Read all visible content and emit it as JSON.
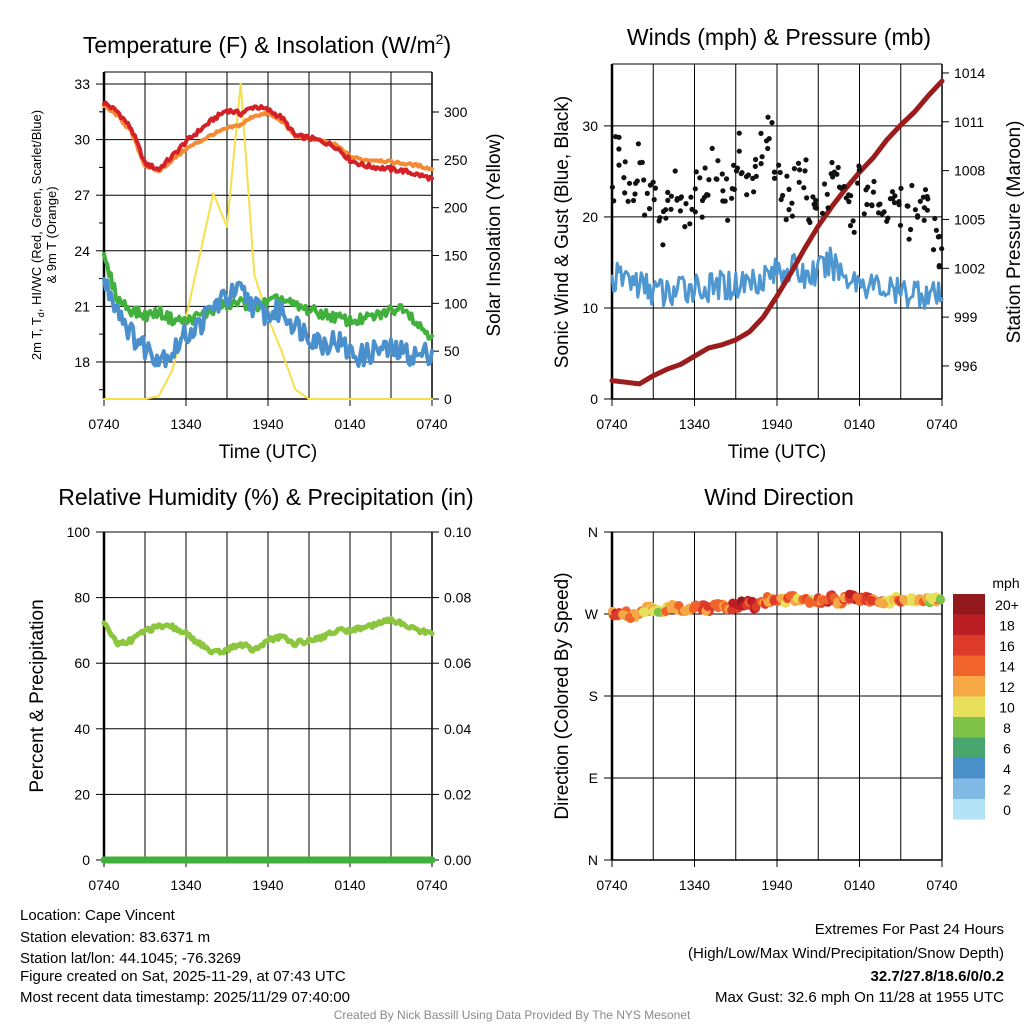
{
  "colors": {
    "temp_2m": "#d42027",
    "temp_9m": "#f58a34",
    "dewpoint": "#42b03d",
    "windchill": "#4a90cc",
    "solar": "#f8e04a",
    "sonic_wind": "#4f97d1",
    "gust": "#111111",
    "pressure": "#9b1c1c",
    "rh": "#8cc63f",
    "precip": "#42b03d",
    "extremes": "#d42027"
  },
  "chart_data": [
    {
      "type": "line",
      "title": "Temperature (F) & Insolation (W/m",
      "title_sup": "2",
      "title_close": ")",
      "xlabel": "Time (UTC)",
      "ylabel_line1_a": "2m T, T",
      "ylabel_line1_sub": "d",
      "ylabel_line1_b": ", HI/WC (Red, Green, Scarlet/Blue)",
      "ylabel_line2": "& 9m T (Orange)",
      "y2label": "Solar Insolation (Yellow)",
      "x_hours": [
        0,
        1,
        2,
        3,
        4,
        5,
        6,
        7,
        8,
        9,
        10,
        11,
        12,
        13,
        14,
        15,
        16,
        17,
        18,
        19,
        20,
        21,
        22,
        23,
        24
      ],
      "xticks": [
        "0740",
        "1340",
        "1940",
        "0140",
        "0740"
      ],
      "ylim": [
        16,
        33.65
      ],
      "yticks": [
        18,
        21,
        24,
        27,
        30,
        33
      ],
      "y2lim": [
        0,
        341.8
      ],
      "y2ticks": [
        0,
        50,
        100,
        150,
        200,
        250,
        300
      ],
      "series": [
        {
          "name": "2m T",
          "axis": "left",
          "color_key": "temp_2m",
          "values": [
            32,
            31.5,
            30.6,
            28.7,
            28.4,
            29.1,
            29.9,
            30.5,
            31.1,
            31.6,
            31.4,
            31.8,
            31.6,
            31.2,
            30.2,
            30.1,
            29.9,
            29.6,
            28.9,
            28.6,
            28.5,
            28.4,
            28.3,
            28.1,
            27.9
          ]
        },
        {
          "name": "9m T",
          "axis": "left",
          "color_key": "temp_9m",
          "values": [
            31.8,
            31.3,
            30.4,
            28.6,
            28.3,
            28.9,
            29.5,
            29.9,
            30.3,
            30.6,
            30.8,
            31.3,
            31.4,
            31.0,
            30.2,
            30.1,
            29.9,
            29.7,
            29.1,
            28.9,
            28.9,
            28.8,
            28.7,
            28.6,
            28.4
          ]
        },
        {
          "name": "Dewpoint",
          "axis": "left",
          "color_key": "dewpoint",
          "values": [
            23.6,
            21.4,
            20.8,
            20.5,
            20.7,
            20.3,
            20.2,
            20.5,
            20.8,
            21.1,
            21.2,
            21.0,
            21.2,
            21.4,
            21.0,
            20.8,
            20.6,
            20.4,
            20.2,
            20.3,
            20.5,
            20.8,
            21.0,
            20.0,
            19.4
          ]
        },
        {
          "name": "Wind Chill",
          "axis": "left",
          "color_key": "windchill",
          "values": [
            22.3,
            21.0,
            19.5,
            18.8,
            18.3,
            18.5,
            19.5,
            20.0,
            21.0,
            21.5,
            21.8,
            21.0,
            20.5,
            20.8,
            20.0,
            19.5,
            19.0,
            19.2,
            18.5,
            18.3,
            18.7,
            18.6,
            18.5,
            18.3,
            18.6
          ]
        },
        {
          "name": "Solar Insolation",
          "axis": "right",
          "color_key": "solar",
          "values": [
            0,
            0,
            0,
            0,
            3,
            30,
            85,
            150,
            215,
            180,
            330,
            130,
            85,
            50,
            10,
            0,
            0,
            0,
            0,
            0,
            0,
            0,
            0,
            0,
            0
          ]
        }
      ]
    },
    {
      "type": "line+scatter",
      "title": "Winds (mph) & Pressure (mb)",
      "xlabel": "Time (UTC)",
      "ylabel": "Sonic Wind & Gust (Blue, Black)",
      "y2label": "Station Pressure (Maroon)",
      "x_hours": [
        0,
        1,
        2,
        3,
        4,
        5,
        6,
        7,
        8,
        9,
        10,
        11,
        12,
        13,
        14,
        15,
        16,
        17,
        18,
        19,
        20,
        21,
        22,
        23,
        24
      ],
      "xticks": [
        "0740",
        "1340",
        "1940",
        "0140",
        "0740"
      ],
      "ylim": [
        0,
        36.8
      ],
      "yticks": [
        0,
        10,
        20,
        30
      ],
      "y2lim": [
        993.97,
        1014.55
      ],
      "y2ticks": [
        996,
        999,
        1002,
        1005,
        1008,
        1011,
        1014
      ],
      "series": [
        {
          "name": "Sonic Wind",
          "axis": "left",
          "color_key": "sonic_wind",
          "values": [
            13,
            13.5,
            12.5,
            12,
            11.5,
            12,
            12.5,
            12,
            12.5,
            12.5,
            13,
            13.5,
            14,
            14.5,
            13.5,
            14,
            15,
            13.5,
            13,
            12.5,
            12,
            11.5,
            12,
            11.5,
            11
          ]
        },
        {
          "name": "Station Pressure",
          "axis": "right",
          "color_key": "pressure",
          "values": [
            995.1,
            995.0,
            994.9,
            995.4,
            995.8,
            996.1,
            996.6,
            997.1,
            997.3,
            997.6,
            998.1,
            999.0,
            1000.3,
            1001.7,
            1003.2,
            1004.6,
            1005.8,
            1006.9,
            1007.9,
            1008.8,
            1009.9,
            1010.8,
            1011.6,
            1012.6,
            1013.5
          ]
        }
      ],
      "gust_points": {
        "x_hours": [
          0,
          0.5,
          1,
          1.5,
          2,
          2.5,
          3,
          3.5,
          4,
          4.5,
          5,
          5.5,
          6,
          6.5,
          7,
          7.5,
          8,
          8.5,
          9,
          9.5,
          10,
          10.5,
          11,
          11.5,
          12,
          12.5,
          13,
          13.5,
          14,
          14.5,
          15,
          15.5,
          16,
          16.5,
          17,
          17.5,
          18,
          18.5,
          19,
          19.5,
          20,
          20.5,
          21,
          21.5,
          22,
          22.5,
          23,
          23.5,
          24
        ],
        "values": [
          22,
          27,
          24,
          23,
          26,
          22,
          24,
          19,
          21,
          23,
          20,
          21,
          23,
          22,
          24,
          26,
          23,
          22,
          25,
          27,
          23,
          24,
          28,
          30,
          26,
          22,
          21,
          25,
          24,
          20,
          23,
          22,
          25,
          23,
          21,
          20,
          24,
          21,
          22,
          19,
          20,
          23,
          21,
          19,
          22,
          20,
          21,
          18,
          17
        ]
      }
    },
    {
      "type": "line",
      "title": "Relative Humidity (%) & Precipitation (in)",
      "ylabel": "Percent & Precipitation",
      "x_hours": [
        0,
        1,
        2,
        3,
        4,
        5,
        6,
        7,
        8,
        9,
        10,
        11,
        12,
        13,
        14,
        15,
        16,
        17,
        18,
        19,
        20,
        21,
        22,
        23,
        24
      ],
      "xticks": [
        "0740",
        "1340",
        "1940",
        "0140",
        "0740"
      ],
      "ylim": [
        0,
        100
      ],
      "yticks": [
        0,
        20,
        40,
        60,
        80,
        100
      ],
      "y2lim": [
        0,
        0.1
      ],
      "y2ticks": [
        "0.00",
        "0.02",
        "0.04",
        "0.06",
        "0.08",
        "0.10"
      ],
      "series": [
        {
          "name": "Relative Humidity",
          "axis": "left",
          "color_key": "rh",
          "values": [
            72,
            66,
            67,
            70,
            71,
            71,
            69,
            66,
            63,
            64,
            66,
            64,
            67,
            68,
            66,
            67,
            68,
            70,
            70,
            71,
            72,
            73,
            72,
            70,
            69
          ]
        },
        {
          "name": "Precipitation",
          "axis": "right",
          "color_key": "precip",
          "values": [
            0,
            0,
            0,
            0,
            0,
            0,
            0,
            0,
            0,
            0,
            0,
            0,
            0,
            0,
            0,
            0,
            0,
            0,
            0,
            0,
            0,
            0,
            0,
            0,
            0
          ]
        }
      ]
    },
    {
      "type": "scatter",
      "title": "Wind Direction",
      "ylabel": "Direction (Colored By Speed)",
      "xticks": [
        "0740",
        "1340",
        "1940",
        "0140",
        "0740"
      ],
      "ylim": [
        0,
        360
      ],
      "ytick_values": [
        0,
        90,
        180,
        270,
        360
      ],
      "ytick_labels": [
        "N",
        "E",
        "S",
        "W",
        "N"
      ],
      "x_hours": [
        0,
        0.5,
        1,
        1.5,
        2,
        2.5,
        3,
        3.5,
        4,
        4.5,
        5,
        5.5,
        6,
        6.5,
        7,
        7.5,
        8,
        8.5,
        9,
        9.5,
        10,
        10.5,
        11,
        11.5,
        12,
        12.5,
        13,
        13.5,
        14,
        14.5,
        15,
        15.5,
        16,
        16.5,
        17,
        17.5,
        18,
        18.5,
        19,
        19.5,
        20,
        20.5,
        21,
        21.5,
        22,
        22.5,
        23,
        23.5,
        24
      ],
      "direction_deg": [
        270,
        269,
        271,
        268,
        272,
        275,
        276,
        274,
        275,
        277,
        276,
        274,
        278,
        277,
        276,
        279,
        278,
        275,
        279,
        281,
        282,
        279,
        284,
        286,
        285,
        284,
        287,
        286,
        285,
        283,
        285,
        286,
        288,
        284,
        287,
        289,
        286,
        287,
        286,
        285,
        284,
        287,
        286,
        285,
        285,
        284,
        285,
        286,
        284
      ],
      "speed_mph": [
        14,
        16,
        14,
        15,
        15,
        12,
        11,
        12,
        13,
        14,
        13,
        14,
        15,
        16,
        15,
        16,
        14,
        15,
        17,
        19,
        18,
        17,
        15,
        14,
        15,
        13,
        16,
        12,
        14,
        13,
        15,
        16,
        17,
        14,
        16,
        18,
        15,
        17,
        16,
        13,
        12,
        12,
        15,
        12,
        12,
        13,
        11,
        12,
        10
      ],
      "colorbar": {
        "title": "mph",
        "labels": [
          "20+",
          "18",
          "16",
          "14",
          "12",
          "10",
          "8",
          "6",
          "4",
          "2",
          "0"
        ],
        "colors": [
          "#921a1c",
          "#bc1e24",
          "#de3a2a",
          "#f0642c",
          "#f6a845",
          "#e6e05a",
          "#7ec24a",
          "#48a56e",
          "#4a8fc7",
          "#7fb9e4",
          "#b4e3f7"
        ]
      }
    }
  ],
  "station": {
    "location": "Location: Cape Vincent",
    "elevation": "Station elevation: 83.6371 m",
    "latlon": "Station lat/lon: 44.1045; -76.3269",
    "created": "Figure created on Sat, 2025-11-29, at 07:43 UTC",
    "recent": "Most recent data timestamp: 2025/11/29 07:40:00"
  },
  "extremes": {
    "heading": "Extremes For Past 24 Hours",
    "legend": "(High/Low/Max Wind/Precipitation/Snow Depth)",
    "values": "32.7/27.8/18.6/0/0.2",
    "max_gust": "Max Gust: 32.6 mph On 11/28 at 1955 UTC"
  },
  "credit": "Created By Nick Bassill Using Data Provided By The NYS Mesonet"
}
